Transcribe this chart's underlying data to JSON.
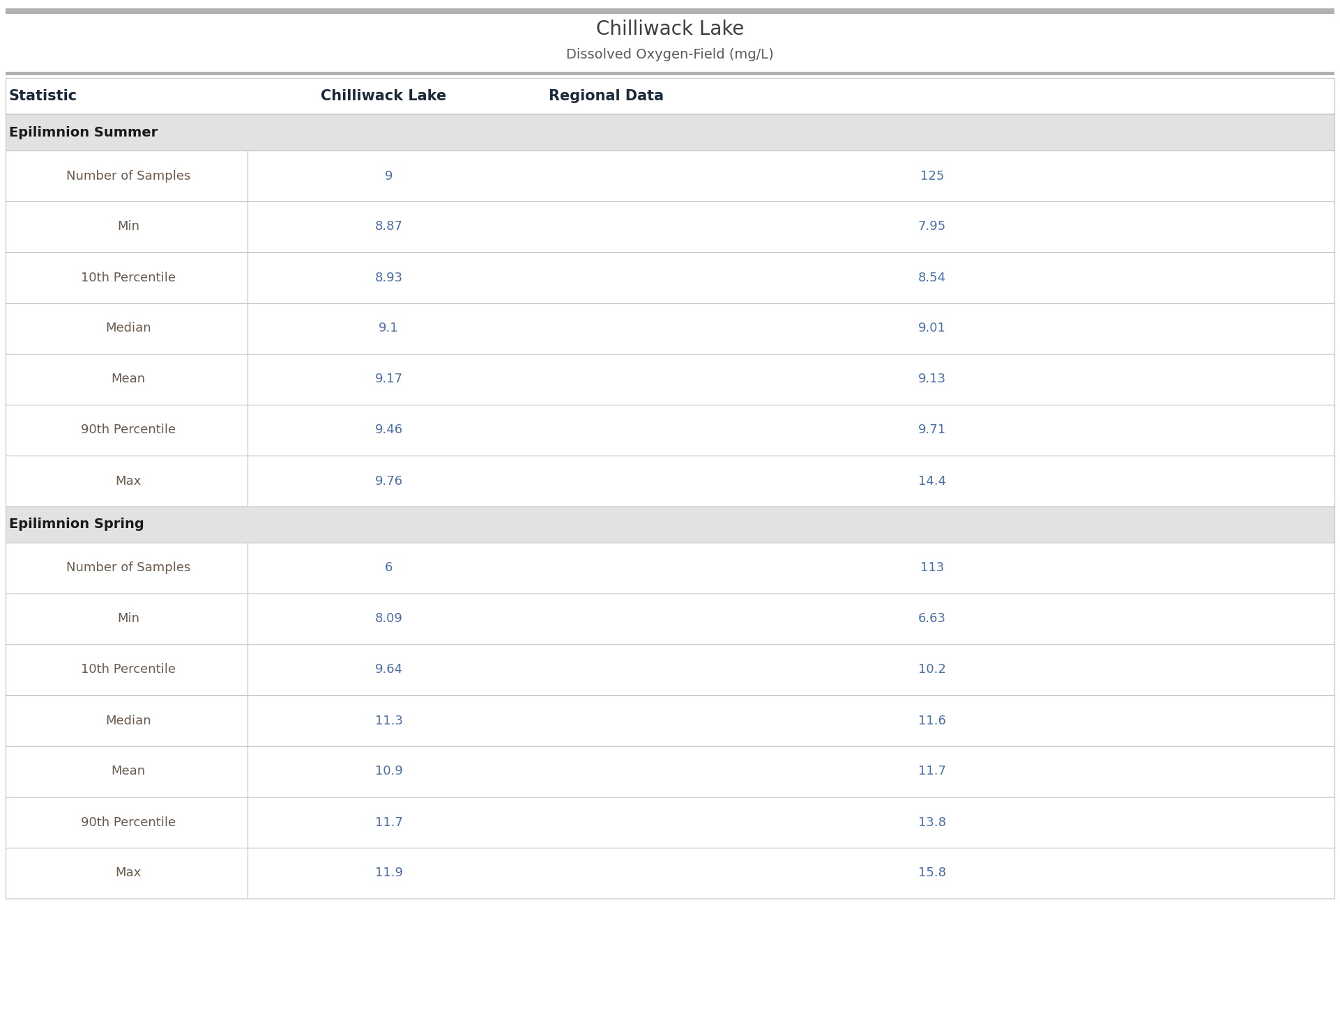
{
  "title": "Chilliwack Lake",
  "subtitle": "Dissolved Oxygen-Field (mg/L)",
  "col_headers": [
    "Statistic",
    "Chilliwack Lake",
    "Regional Data"
  ],
  "sections": [
    {
      "label": "Epilimnion Summer",
      "rows": [
        [
          "Number of Samples",
          "9",
          "125"
        ],
        [
          "Min",
          "8.87",
          "7.95"
        ],
        [
          "10th Percentile",
          "8.93",
          "8.54"
        ],
        [
          "Median",
          "9.1",
          "9.01"
        ],
        [
          "Mean",
          "9.17",
          "9.13"
        ],
        [
          "90th Percentile",
          "9.46",
          "9.71"
        ],
        [
          "Max",
          "9.76",
          "14.4"
        ]
      ]
    },
    {
      "label": "Epilimnion Spring",
      "rows": [
        [
          "Number of Samples",
          "6",
          "113"
        ],
        [
          "Min",
          "8.09",
          "6.63"
        ],
        [
          "10th Percentile",
          "9.64",
          "10.2"
        ],
        [
          "Median",
          "11.3",
          "11.6"
        ],
        [
          "Mean",
          "10.9",
          "11.7"
        ],
        [
          "90th Percentile",
          "11.7",
          "13.8"
        ],
        [
          "Max",
          "11.9",
          "15.8"
        ]
      ]
    }
  ],
  "title_color": "#3d3d3d",
  "subtitle_color": "#5a5a5a",
  "header_text_color": "#1a2a3a",
  "section_bg_color": "#e2e2e2",
  "section_text_color": "#1a1a1a",
  "row_bg_color": "#ffffff",
  "data_text_color": "#4a6fa5",
  "stat_text_color": "#6b5a4e",
  "divider_color": "#c8c8c8",
  "top_bar_color": "#b0b0b0",
  "title_fontsize": 20,
  "subtitle_fontsize": 14,
  "header_fontsize": 15,
  "section_fontsize": 14,
  "data_fontsize": 13,
  "fig_width": 19.22,
  "fig_height": 14.6,
  "dpi": 100
}
